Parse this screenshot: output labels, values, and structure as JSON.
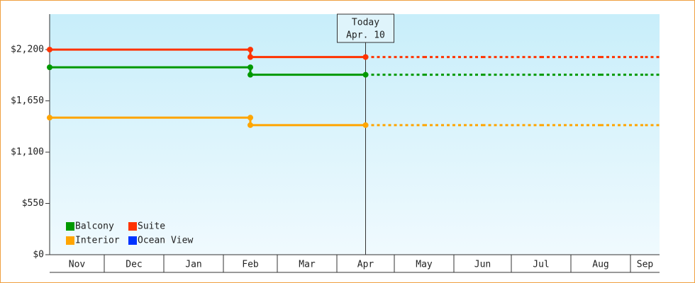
{
  "chart_data": {
    "type": "step",
    "categories": [
      "Nov",
      "Dec",
      "Jan",
      "Feb",
      "Mar",
      "Apr",
      "May",
      "Jun",
      "Jul",
      "Aug",
      "Sep"
    ],
    "series": [
      {
        "name": "Balcony",
        "color": "#009900",
        "values": [
          2010,
          2010,
          2010,
          1930,
          1930,
          1930,
          1930,
          1930,
          1930,
          1930,
          1930
        ]
      },
      {
        "name": "Suite",
        "color": "#ff3300",
        "values": [
          2200,
          2200,
          2200,
          2120,
          2120,
          2120,
          2120,
          2120,
          2120,
          2120,
          2120
        ]
      },
      {
        "name": "Interior",
        "color": "#ffa500",
        "values": [
          1470,
          1470,
          1470,
          1390,
          1390,
          1390,
          1390,
          1390,
          1390,
          1390,
          1390
        ]
      },
      {
        "name": "Ocean View",
        "color": "#0033ff",
        "values": [
          null,
          null,
          null,
          null,
          null,
          null,
          null,
          null,
          null,
          null,
          null
        ]
      }
    ],
    "ylim": [
      0,
      2580
    ],
    "yticks": [
      {
        "value": 0,
        "label": "$0"
      },
      {
        "value": 550,
        "label": "$550"
      },
      {
        "value": 1100,
        "label": "$1,100"
      },
      {
        "value": 1650,
        "label": "$1,650"
      },
      {
        "value": 2200,
        "label": "$2,200"
      }
    ],
    "today": {
      "title": "Today",
      "date": "Apr. 10",
      "category": "Apr"
    }
  }
}
